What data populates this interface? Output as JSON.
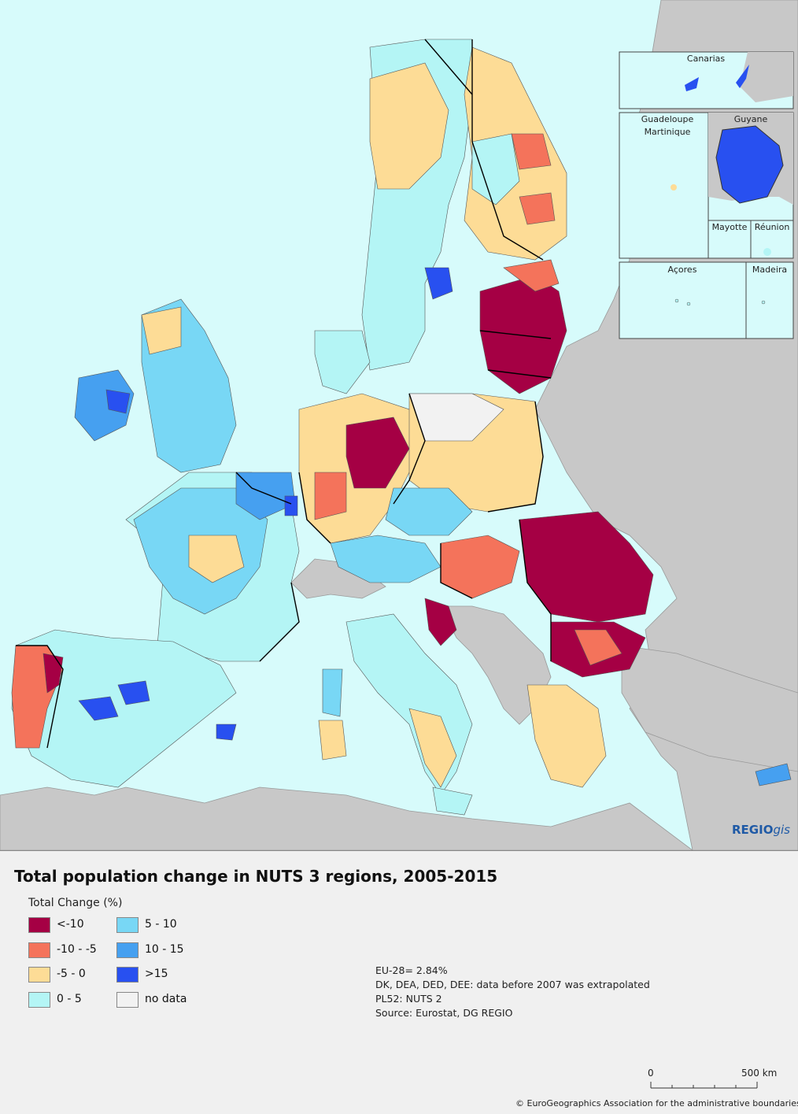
{
  "title": "Total population change in NUTS 3 regions, 2005-2015",
  "legend": {
    "title": "Total Change (%)",
    "items": [
      {
        "label": "<-10",
        "color": "#a50044"
      },
      {
        "label": "-10 - -5",
        "color": "#f4735b"
      },
      {
        "label": "-5 - 0",
        "color": "#fddc96"
      },
      {
        "label": "0 - 5",
        "color": "#b4f5f5"
      },
      {
        "label": "5 - 10",
        "color": "#78d7f5"
      },
      {
        "label": "10 - 15",
        "color": "#46a0f0"
      },
      {
        "label": ">15",
        "color": "#2850f0"
      },
      {
        "label": "no data",
        "color": "#f2f2f2"
      }
    ]
  },
  "notes": [
    "EU-28= 2.84%",
    "DK, DEA, DED, DEE: data before 2007 was extrapolated",
    "PL52: NUTS 2",
    "Source: Eurostat, DG REGIO"
  ],
  "insets": {
    "canarias": "Canarias",
    "guadeloupe": "Guadeloupe",
    "martinique": "Martinique",
    "guyane": "Guyane",
    "mayotte": "Mayotte",
    "reunion": "Réunion",
    "acores": "Açores",
    "madeira": "Madeira"
  },
  "scale": {
    "start": "0",
    "end": "500 km"
  },
  "brand": {
    "bold": "REGIO",
    "italic": "gis"
  },
  "copyright": "© EuroGeographics Association for the administrative boundaries",
  "colors": {
    "sea": "#d7fbfb",
    "land_non_eu": "#c8c8c8",
    "border": "#000000"
  }
}
